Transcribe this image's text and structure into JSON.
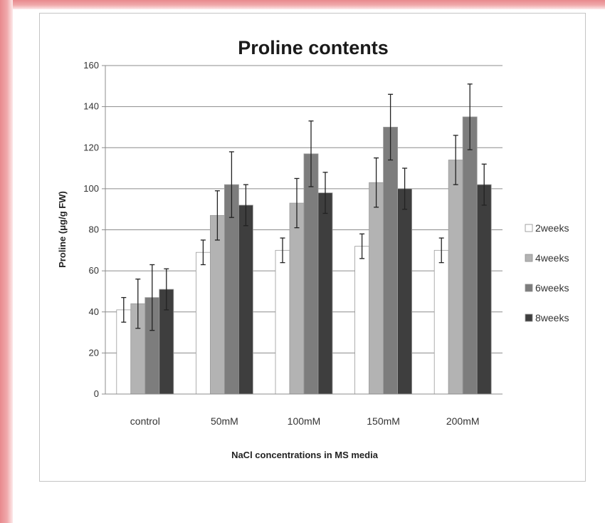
{
  "chart_data": {
    "type": "bar",
    "title": "Proline contents",
    "xlabel": "NaCl concentrations in MS media",
    "ylabel": "Proline (μg/g FW)",
    "ylim": [
      0,
      160
    ],
    "yticks": [
      0,
      20,
      40,
      60,
      80,
      100,
      120,
      140,
      160
    ],
    "grid": true,
    "legend_position": "right",
    "categories": [
      "control",
      "50mM",
      "100mM",
      "150mM",
      "200mM"
    ],
    "series": [
      {
        "name": "2weeks",
        "color": "#ffffff",
        "values": [
          41,
          69,
          70,
          72,
          70
        ],
        "errors": [
          6,
          6,
          6,
          6,
          6
        ]
      },
      {
        "name": "4weeks",
        "color": "#b3b3b3",
        "values": [
          44,
          87,
          93,
          103,
          114
        ],
        "errors": [
          12,
          12,
          12,
          12,
          12
        ]
      },
      {
        "name": "6weeks",
        "color": "#7d7d7d",
        "values": [
          47,
          102,
          117,
          130,
          135
        ],
        "errors": [
          16,
          16,
          16,
          16,
          16
        ]
      },
      {
        "name": "8weeks",
        "color": "#3e3e3e",
        "values": [
          51,
          92,
          98,
          100,
          102
        ],
        "errors": [
          10,
          10,
          10,
          10,
          10
        ]
      }
    ]
  }
}
